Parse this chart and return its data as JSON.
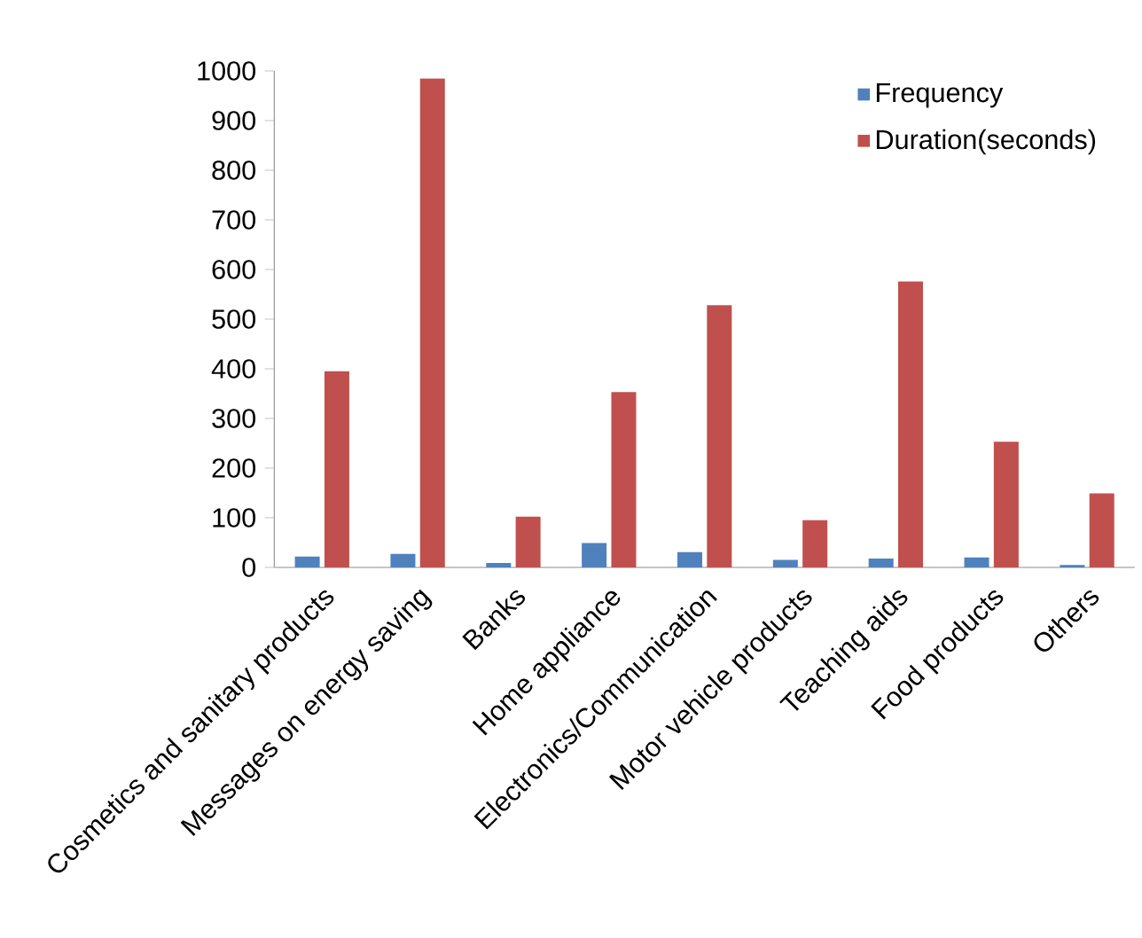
{
  "chart_data": {
    "type": "bar",
    "categories": [
      "Cosmetics and sanitary products",
      "Messages on energy saving",
      "Banks",
      "Home appliance",
      "Electronics/Communication",
      "Motor vehicle products",
      "Teaching aids",
      "Food products",
      "Others"
    ],
    "series": [
      {
        "name": "Frequency",
        "color": "#4f81bd",
        "values": [
          22,
          27,
          9,
          49,
          31,
          15,
          18,
          20,
          5
        ]
      },
      {
        "name": "Duration(seconds)",
        "color": "#c0504d",
        "values": [
          395,
          985,
          102,
          353,
          528,
          95,
          576,
          253,
          149
        ]
      }
    ],
    "ylim": [
      0,
      1000
    ],
    "yticks": [
      0,
      100,
      200,
      300,
      400,
      500,
      600,
      700,
      800,
      900,
      1000
    ],
    "grid": false,
    "legend": "top right"
  }
}
